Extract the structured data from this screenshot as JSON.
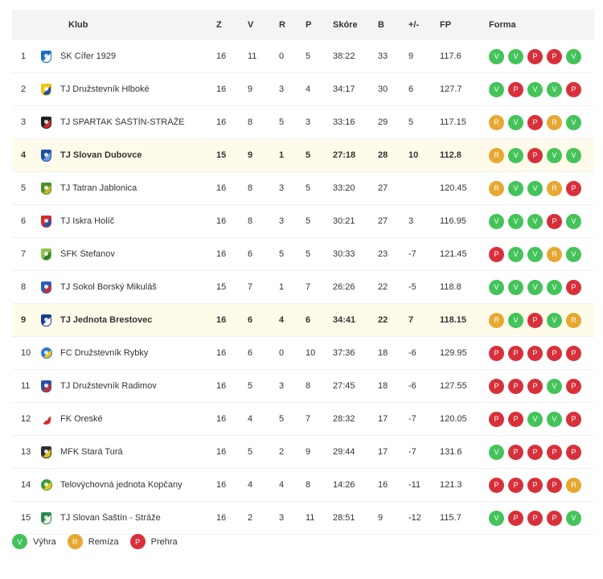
{
  "table": {
    "headers": {
      "club": "Klub",
      "z": "Z",
      "v": "V",
      "r": "R",
      "p": "P",
      "score": "Skóre",
      "b": "B",
      "diff": "+/-",
      "fp": "FP",
      "form": "Forma"
    },
    "rows": [
      {
        "rank": "1",
        "club": "ŠK Cífer 1929",
        "z": "16",
        "v": "11",
        "r": "0",
        "p": "5",
        "score": "38:22",
        "b": "33",
        "diff": "9",
        "fp": "117.6",
        "form": [
          "V",
          "V",
          "P",
          "P",
          "V"
        ],
        "highlight": false,
        "logo": "shield",
        "colors": [
          "#1b6fc4",
          "#ffffff"
        ]
      },
      {
        "rank": "2",
        "club": "TJ Družstevník Hlboké",
        "z": "16",
        "v": "9",
        "r": "3",
        "p": "4",
        "score": "34:17",
        "b": "30",
        "diff": "6",
        "fp": "127.7",
        "form": [
          "V",
          "P",
          "V",
          "V",
          "P"
        ],
        "highlight": false,
        "logo": "shield",
        "colors": [
          "#f2c318",
          "#1d4fb8"
        ]
      },
      {
        "rank": "3",
        "club": "TJ SPARTAK ŠAŠTÍN-STRÁŽE",
        "z": "16",
        "v": "8",
        "r": "5",
        "p": "3",
        "score": "33:16",
        "b": "29",
        "diff": "5",
        "fp": "117.15",
        "form": [
          "R",
          "V",
          "P",
          "R",
          "V"
        ],
        "highlight": false,
        "logo": "shield",
        "colors": [
          "#222222",
          "#d62b2b"
        ]
      },
      {
        "rank": "4",
        "club": "TJ Slovan Dubovce",
        "z": "15",
        "v": "9",
        "r": "1",
        "p": "5",
        "score": "27:18",
        "b": "28",
        "diff": "10",
        "fp": "112.8",
        "form": [
          "R",
          "V",
          "P",
          "V",
          "V"
        ],
        "highlight": true,
        "logo": "shield",
        "colors": [
          "#1f4ea8",
          "#6fa0e0"
        ]
      },
      {
        "rank": "5",
        "club": "TJ Tatran Jablonica",
        "z": "16",
        "v": "8",
        "r": "3",
        "p": "5",
        "score": "33:20",
        "b": "27",
        "diff": "",
        "fp": "120.45",
        "form": [
          "R",
          "V",
          "V",
          "R",
          "P"
        ],
        "highlight": false,
        "logo": "shield",
        "colors": [
          "#4d8f2a",
          "#c9b52a"
        ]
      },
      {
        "rank": "6",
        "club": "TJ Iskra Holíč",
        "z": "16",
        "v": "8",
        "r": "3",
        "p": "5",
        "score": "30:21",
        "b": "27",
        "diff": "3",
        "fp": "116.95",
        "form": [
          "V",
          "V",
          "V",
          "P",
          "V"
        ],
        "highlight": false,
        "logo": "shield",
        "colors": [
          "#d62b2b",
          "#2254b0"
        ]
      },
      {
        "rank": "7",
        "club": "ŠFK Štefanov",
        "z": "16",
        "v": "6",
        "r": "5",
        "p": "5",
        "score": "30:33",
        "b": "23",
        "diff": "-7",
        "fp": "121.45",
        "form": [
          "P",
          "V",
          "V",
          "R",
          "V"
        ],
        "highlight": false,
        "logo": "shield",
        "colors": [
          "#8bc34a",
          "#2e7d32"
        ]
      },
      {
        "rank": "8",
        "club": "TJ Sokol Borský Mikuláš",
        "z": "15",
        "v": "7",
        "r": "1",
        "p": "7",
        "score": "26:26",
        "b": "22",
        "diff": "-5",
        "fp": "118.8",
        "form": [
          "V",
          "V",
          "V",
          "V",
          "P"
        ],
        "highlight": false,
        "logo": "shield",
        "colors": [
          "#2a5fbf",
          "#d62b2b"
        ]
      },
      {
        "rank": "9",
        "club": "TJ Jednota Brestovec",
        "z": "16",
        "v": "6",
        "r": "4",
        "p": "6",
        "score": "34:41",
        "b": "22",
        "diff": "7",
        "fp": "118.15",
        "form": [
          "R",
          "V",
          "P",
          "V",
          "R"
        ],
        "highlight": true,
        "logo": "shield",
        "colors": [
          "#1a3f8f",
          "#ffffff"
        ]
      },
      {
        "rank": "10",
        "club": "FC Družstevník Rybky",
        "z": "16",
        "v": "6",
        "r": "0",
        "p": "10",
        "score": "37:36",
        "b": "18",
        "diff": "-6",
        "fp": "129.95",
        "form": [
          "P",
          "P",
          "P",
          "P",
          "P"
        ],
        "highlight": false,
        "logo": "round",
        "colors": [
          "#2b7ad6",
          "#f2c318"
        ]
      },
      {
        "rank": "11",
        "club": "TJ Družstevník Radimov",
        "z": "16",
        "v": "5",
        "r": "3",
        "p": "8",
        "score": "27:45",
        "b": "18",
        "diff": "-6",
        "fp": "127.55",
        "form": [
          "P",
          "P",
          "P",
          "V",
          "P"
        ],
        "highlight": false,
        "logo": "shield",
        "colors": [
          "#2a4fa8",
          "#d62b2b"
        ]
      },
      {
        "rank": "12",
        "club": "FK Oreské",
        "z": "16",
        "v": "4",
        "r": "5",
        "p": "7",
        "score": "28:32",
        "b": "17",
        "diff": "-7",
        "fp": "120.05",
        "form": [
          "P",
          "P",
          "V",
          "V",
          "P"
        ],
        "highlight": false,
        "logo": "shield",
        "colors": [
          "#ffffff",
          "#d62b2b"
        ]
      },
      {
        "rank": "13",
        "club": "MFK Stará Turá",
        "z": "16",
        "v": "5",
        "r": "2",
        "p": "9",
        "score": "29:44",
        "b": "17",
        "diff": "-7",
        "fp": "131.6",
        "form": [
          "V",
          "P",
          "P",
          "P",
          "P"
        ],
        "highlight": false,
        "logo": "shield",
        "colors": [
          "#2f2f2f",
          "#e0c020"
        ]
      },
      {
        "rank": "14",
        "club": "Telovýchovná jednota Kopčany",
        "z": "16",
        "v": "4",
        "r": "4",
        "p": "8",
        "score": "14:26",
        "b": "16",
        "diff": "-11",
        "fp": "121.3",
        "form": [
          "P",
          "P",
          "P",
          "P",
          "R"
        ],
        "highlight": false,
        "logo": "round",
        "colors": [
          "#3a9a3a",
          "#f2c318"
        ]
      },
      {
        "rank": "15",
        "club": "TJ Slovan Šaštín - Stráže",
        "z": "16",
        "v": "2",
        "r": "3",
        "p": "11",
        "score": "28:51",
        "b": "9",
        "diff": "-12",
        "fp": "115.7",
        "form": [
          "V",
          "P",
          "P",
          "P",
          "V"
        ],
        "highlight": false,
        "logo": "shield",
        "colors": [
          "#2a8a4a",
          "#f0f0f0"
        ]
      }
    ]
  },
  "legend": [
    {
      "code": "V",
      "label": "Výhra"
    },
    {
      "code": "R",
      "label": "Remíza"
    },
    {
      "code": "P",
      "label": "Prehra"
    }
  ],
  "colors": {
    "V": "#44c35a",
    "R": "#e6a830",
    "P": "#d8303a",
    "highlight": "#fffbea"
  }
}
